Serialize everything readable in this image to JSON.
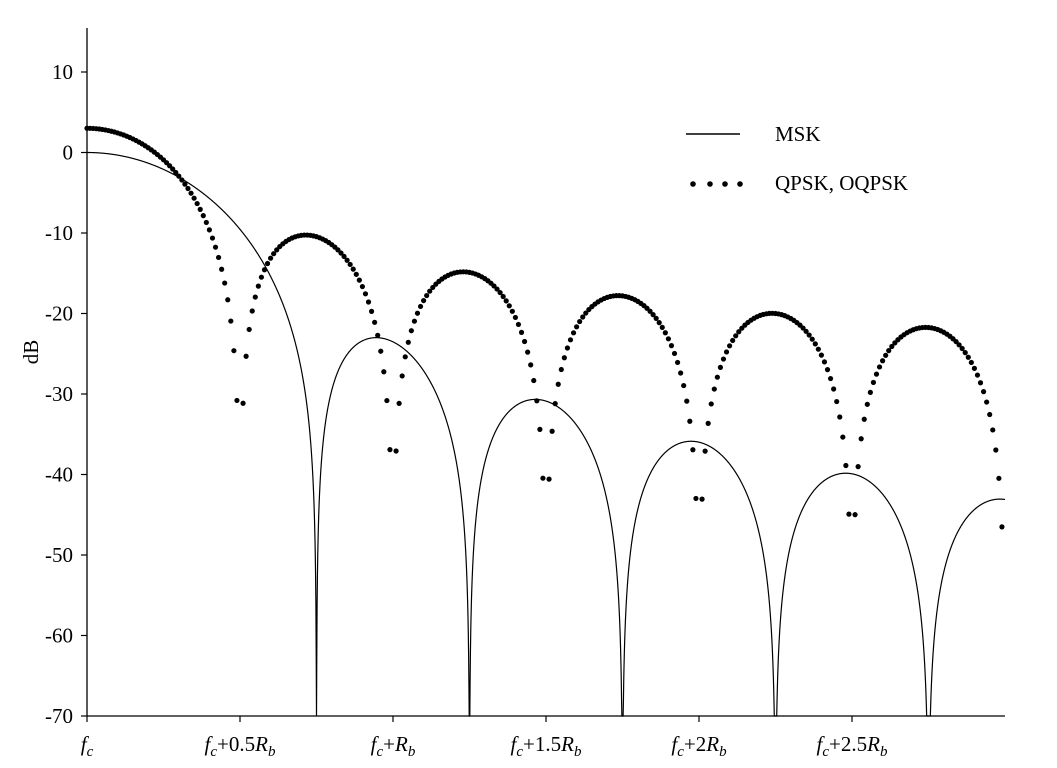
{
  "chart_data": {
    "type": "line",
    "title": "",
    "xlabel": "",
    "ylabel": "dB",
    "ylim": [
      -70,
      15
    ],
    "xlim": [
      0,
      3
    ],
    "x_unit": "R_b offset from f_c",
    "yticks": [
      10,
      0,
      -10,
      -20,
      -30,
      -40,
      -50,
      -60,
      -70
    ],
    "ytick_labels": [
      "10",
      "0",
      "-10",
      "-20",
      "-30",
      "-40",
      "-50",
      "-60",
      "-70"
    ],
    "xticks": [
      {
        "x": 0,
        "parts": [
          [
            "f",
            "italic"
          ],
          [
            "c",
            "italic-sub"
          ]
        ]
      },
      {
        "x": 0.5,
        "parts": [
          [
            "f",
            "italic"
          ],
          [
            "c",
            "italic-sub"
          ],
          [
            "+0.5",
            "normal"
          ],
          [
            "R",
            "italic"
          ],
          [
            "b",
            "italic-sub"
          ]
        ]
      },
      {
        "x": 1,
        "parts": [
          [
            "f",
            "italic"
          ],
          [
            "c",
            "italic-sub"
          ],
          [
            "+",
            "normal"
          ],
          [
            "R",
            "italic"
          ],
          [
            "b",
            "italic-sub"
          ]
        ]
      },
      {
        "x": 1.5,
        "parts": [
          [
            "f",
            "italic"
          ],
          [
            "c",
            "italic-sub"
          ],
          [
            "+1.5",
            "normal"
          ],
          [
            "R",
            "italic"
          ],
          [
            "b",
            "italic-sub"
          ]
        ]
      },
      {
        "x": 2,
        "parts": [
          [
            "f",
            "italic"
          ],
          [
            "c",
            "italic-sub"
          ],
          [
            "+2",
            "normal"
          ],
          [
            "R",
            "italic"
          ],
          [
            "b",
            "italic-sub"
          ]
        ]
      },
      {
        "x": 2.5,
        "parts": [
          [
            "f",
            "italic"
          ],
          [
            "c",
            "italic-sub"
          ],
          [
            "+2.5",
            "normal"
          ],
          [
            "R",
            "italic"
          ],
          [
            "b",
            "italic-sub"
          ]
        ]
      }
    ],
    "series": [
      {
        "name": "MSK",
        "style": "solid",
        "formula": "10*log10((cos(2*pi*f)/(1-16*f^2))^2)",
        "nulls": [
          0.75,
          1.25,
          1.75,
          2.25,
          2.75
        ],
        "peaks_db": [
          0,
          -23,
          -30.6,
          -35.9,
          -39.8,
          -43
        ]
      },
      {
        "name": "QPSK, OQPSK",
        "style": "dotted",
        "formula": "10*log10(2*sinc^2(2f))",
        "nulls": [
          0.5,
          1,
          1.5,
          2,
          2.5
        ],
        "peaks_db": [
          3,
          -10.5,
          -14.9,
          -17.9,
          -20.1,
          -21.9
        ]
      }
    ],
    "legend": {
      "placement": "top-right",
      "entries": [
        "MSK",
        "QPSK, OQPSK"
      ]
    },
    "grid": false,
    "colors": {
      "line": "#000000",
      "background": "#ffffff"
    }
  }
}
